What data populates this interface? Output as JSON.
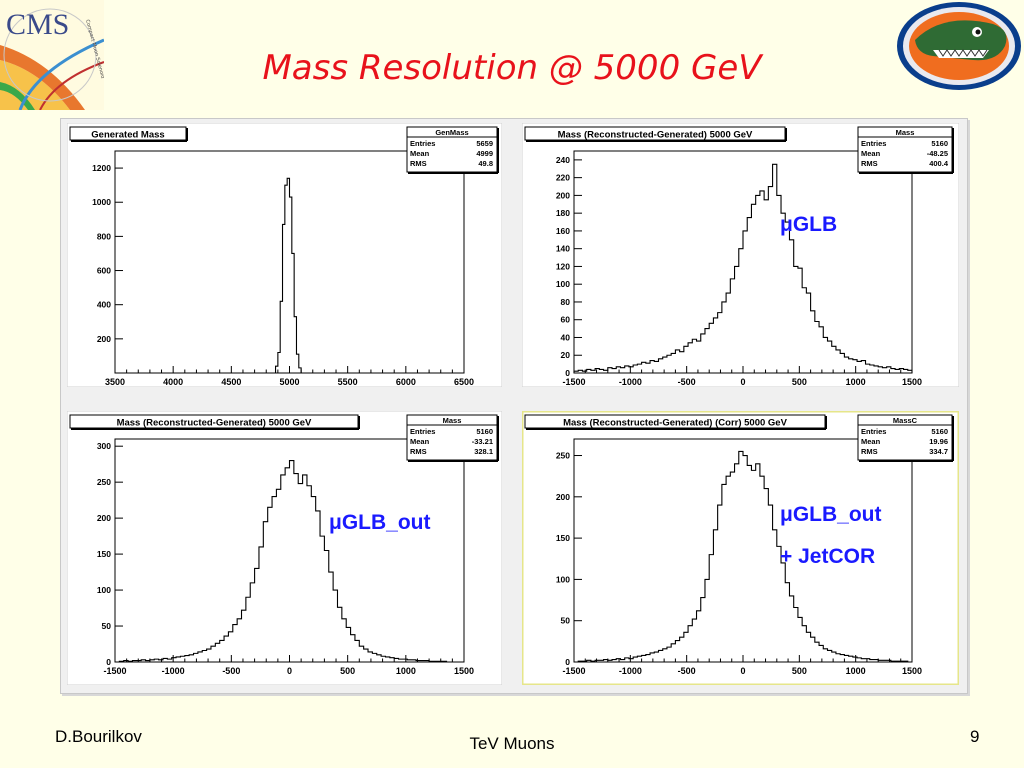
{
  "slide": {
    "title": "Mass Resolution @ 5000 GeV",
    "author": "D.Bourilkov",
    "footer": "TeV Muons",
    "page": "9"
  },
  "logos": {
    "cms_text": "CMS",
    "cms_small": "Compact Muon Solenoid"
  },
  "colors": {
    "title": "#e8121b",
    "annotation": "#1a1aff",
    "highlight": "#e6e68a"
  },
  "chart_data": [
    {
      "type": "bar",
      "title": "Generated Mass",
      "stats": {
        "name": "GenMass",
        "rows": [
          [
            "Entries",
            "5659"
          ],
          [
            "Mean",
            "4999"
          ],
          [
            "RMS",
            "49.8"
          ]
        ]
      },
      "x_ticks": [
        "3500",
        "4000",
        "4500",
        "5000",
        "5500",
        "6000",
        "6500"
      ],
      "y_ticks": [
        "200",
        "400",
        "600",
        "800",
        "1000",
        "1200"
      ],
      "xlim": [
        3500,
        6500
      ],
      "ylim": [
        0,
        1300
      ],
      "bins": [
        [
          4860,
          4880,
          0
        ],
        [
          4880,
          4900,
          40
        ],
        [
          4900,
          4920,
          120
        ],
        [
          4920,
          4940,
          420
        ],
        [
          4940,
          4960,
          870
        ],
        [
          4960,
          4980,
          1100
        ],
        [
          4980,
          5000,
          1140
        ],
        [
          5000,
          5020,
          1030
        ],
        [
          5020,
          5040,
          700
        ],
        [
          5040,
          5060,
          330
        ],
        [
          5060,
          5080,
          110
        ],
        [
          5080,
          5100,
          30
        ]
      ],
      "annotation": ""
    },
    {
      "type": "bar",
      "title": "Mass (Reconstructed-Generated)  5000  GeV",
      "stats": {
        "name": "Mass",
        "rows": [
          [
            "Entries",
            "5160"
          ],
          [
            "Mean",
            "-48.25"
          ],
          [
            "RMS",
            "400.4"
          ]
        ]
      },
      "x_ticks": [
        "-1500",
        "-1000",
        "-500",
        "0",
        "500",
        "1000",
        "1500"
      ],
      "y_ticks": [
        "20",
        "40",
        "60",
        "80",
        "100",
        "120",
        "140",
        "160",
        "180",
        "200",
        "220",
        "240"
      ],
      "xlim": [
        -1500,
        1500
      ],
      "ylim": [
        0,
        250
      ],
      "y_values": [
        2,
        3,
        2,
        4,
        3,
        5,
        4,
        3,
        6,
        5,
        7,
        6,
        8,
        7,
        9,
        10,
        12,
        11,
        14,
        13,
        16,
        18,
        20,
        22,
        26,
        24,
        30,
        34,
        38,
        36,
        44,
        50,
        56,
        62,
        68,
        80,
        90,
        106,
        120,
        140,
        160,
        175,
        190,
        200,
        205,
        195,
        210,
        235,
        200,
        180,
        170,
        150,
        120,
        118,
        96,
        90,
        70,
        58,
        52,
        40,
        36,
        30,
        26,
        22,
        18,
        16,
        15,
        13,
        14,
        10,
        9,
        8,
        7,
        6,
        7,
        5,
        4,
        5,
        4,
        3
      ],
      "annotation": "μGLB"
    },
    {
      "type": "bar",
      "title": "Mass (Reconstructed-Generated)  5000  GeV",
      "stats": {
        "name": "Mass",
        "rows": [
          [
            "Entries",
            "5160"
          ],
          [
            "Mean",
            "-33.21"
          ],
          [
            "RMS",
            "328.1"
          ]
        ]
      },
      "x_ticks": [
        "-1500",
        "-1000",
        "-500",
        "0",
        "500",
        "1000",
        "1500"
      ],
      "y_ticks": [
        "50",
        "100",
        "150",
        "200",
        "250",
        "300"
      ],
      "xlim": [
        -1500,
        1500
      ],
      "ylim": [
        0,
        310
      ],
      "y_values": [
        0,
        1,
        2,
        1,
        2,
        2,
        3,
        2,
        3,
        4,
        3,
        5,
        4,
        6,
        7,
        8,
        9,
        10,
        12,
        14,
        16,
        18,
        22,
        26,
        30,
        36,
        42,
        52,
        60,
        72,
        90,
        110,
        130,
        160,
        195,
        215,
        230,
        240,
        260,
        270,
        280,
        262,
        248,
        260,
        245,
        230,
        210,
        175,
        155,
        125,
        100,
        76,
        60,
        48,
        38,
        30,
        22,
        18,
        14,
        12,
        10,
        8,
        7,
        6,
        5,
        4,
        4,
        3,
        3,
        2,
        2,
        2,
        1,
        1,
        1,
        1,
        0,
        0,
        0,
        0
      ],
      "annotation": "μGLB_out"
    },
    {
      "type": "bar",
      "title": "Mass (Reconstructed-Generated) (Corr)  5000  GeV",
      "stats": {
        "name": "MassC",
        "rows": [
          [
            "Entries",
            "5160"
          ],
          [
            "Mean",
            "19.96"
          ],
          [
            "RMS",
            "334.7"
          ]
        ]
      },
      "x_ticks": [
        "-1500",
        "-1000",
        "-500",
        "0",
        "500",
        "1000",
        "1500"
      ],
      "y_ticks": [
        "50",
        "100",
        "150",
        "200",
        "250"
      ],
      "xlim": [
        -1500,
        1500
      ],
      "ylim": [
        0,
        270
      ],
      "y_values": [
        0,
        1,
        1,
        2,
        1,
        2,
        2,
        3,
        2,
        3,
        4,
        3,
        5,
        4,
        6,
        7,
        8,
        9,
        11,
        12,
        14,
        16,
        18,
        22,
        26,
        30,
        36,
        44,
        52,
        62,
        78,
        100,
        130,
        160,
        190,
        215,
        225,
        230,
        240,
        255,
        250,
        238,
        232,
        240,
        225,
        210,
        190,
        160,
        140,
        120,
        96,
        80,
        66,
        54,
        44,
        36,
        30,
        24,
        20,
        16,
        14,
        12,
        10,
        9,
        8,
        7,
        6,
        5,
        4,
        4,
        3,
        3,
        2,
        2,
        2,
        1,
        1,
        1,
        1,
        0
      ],
      "annotation": "μGLB_out",
      "annotation2": "+ JetCOR"
    }
  ]
}
